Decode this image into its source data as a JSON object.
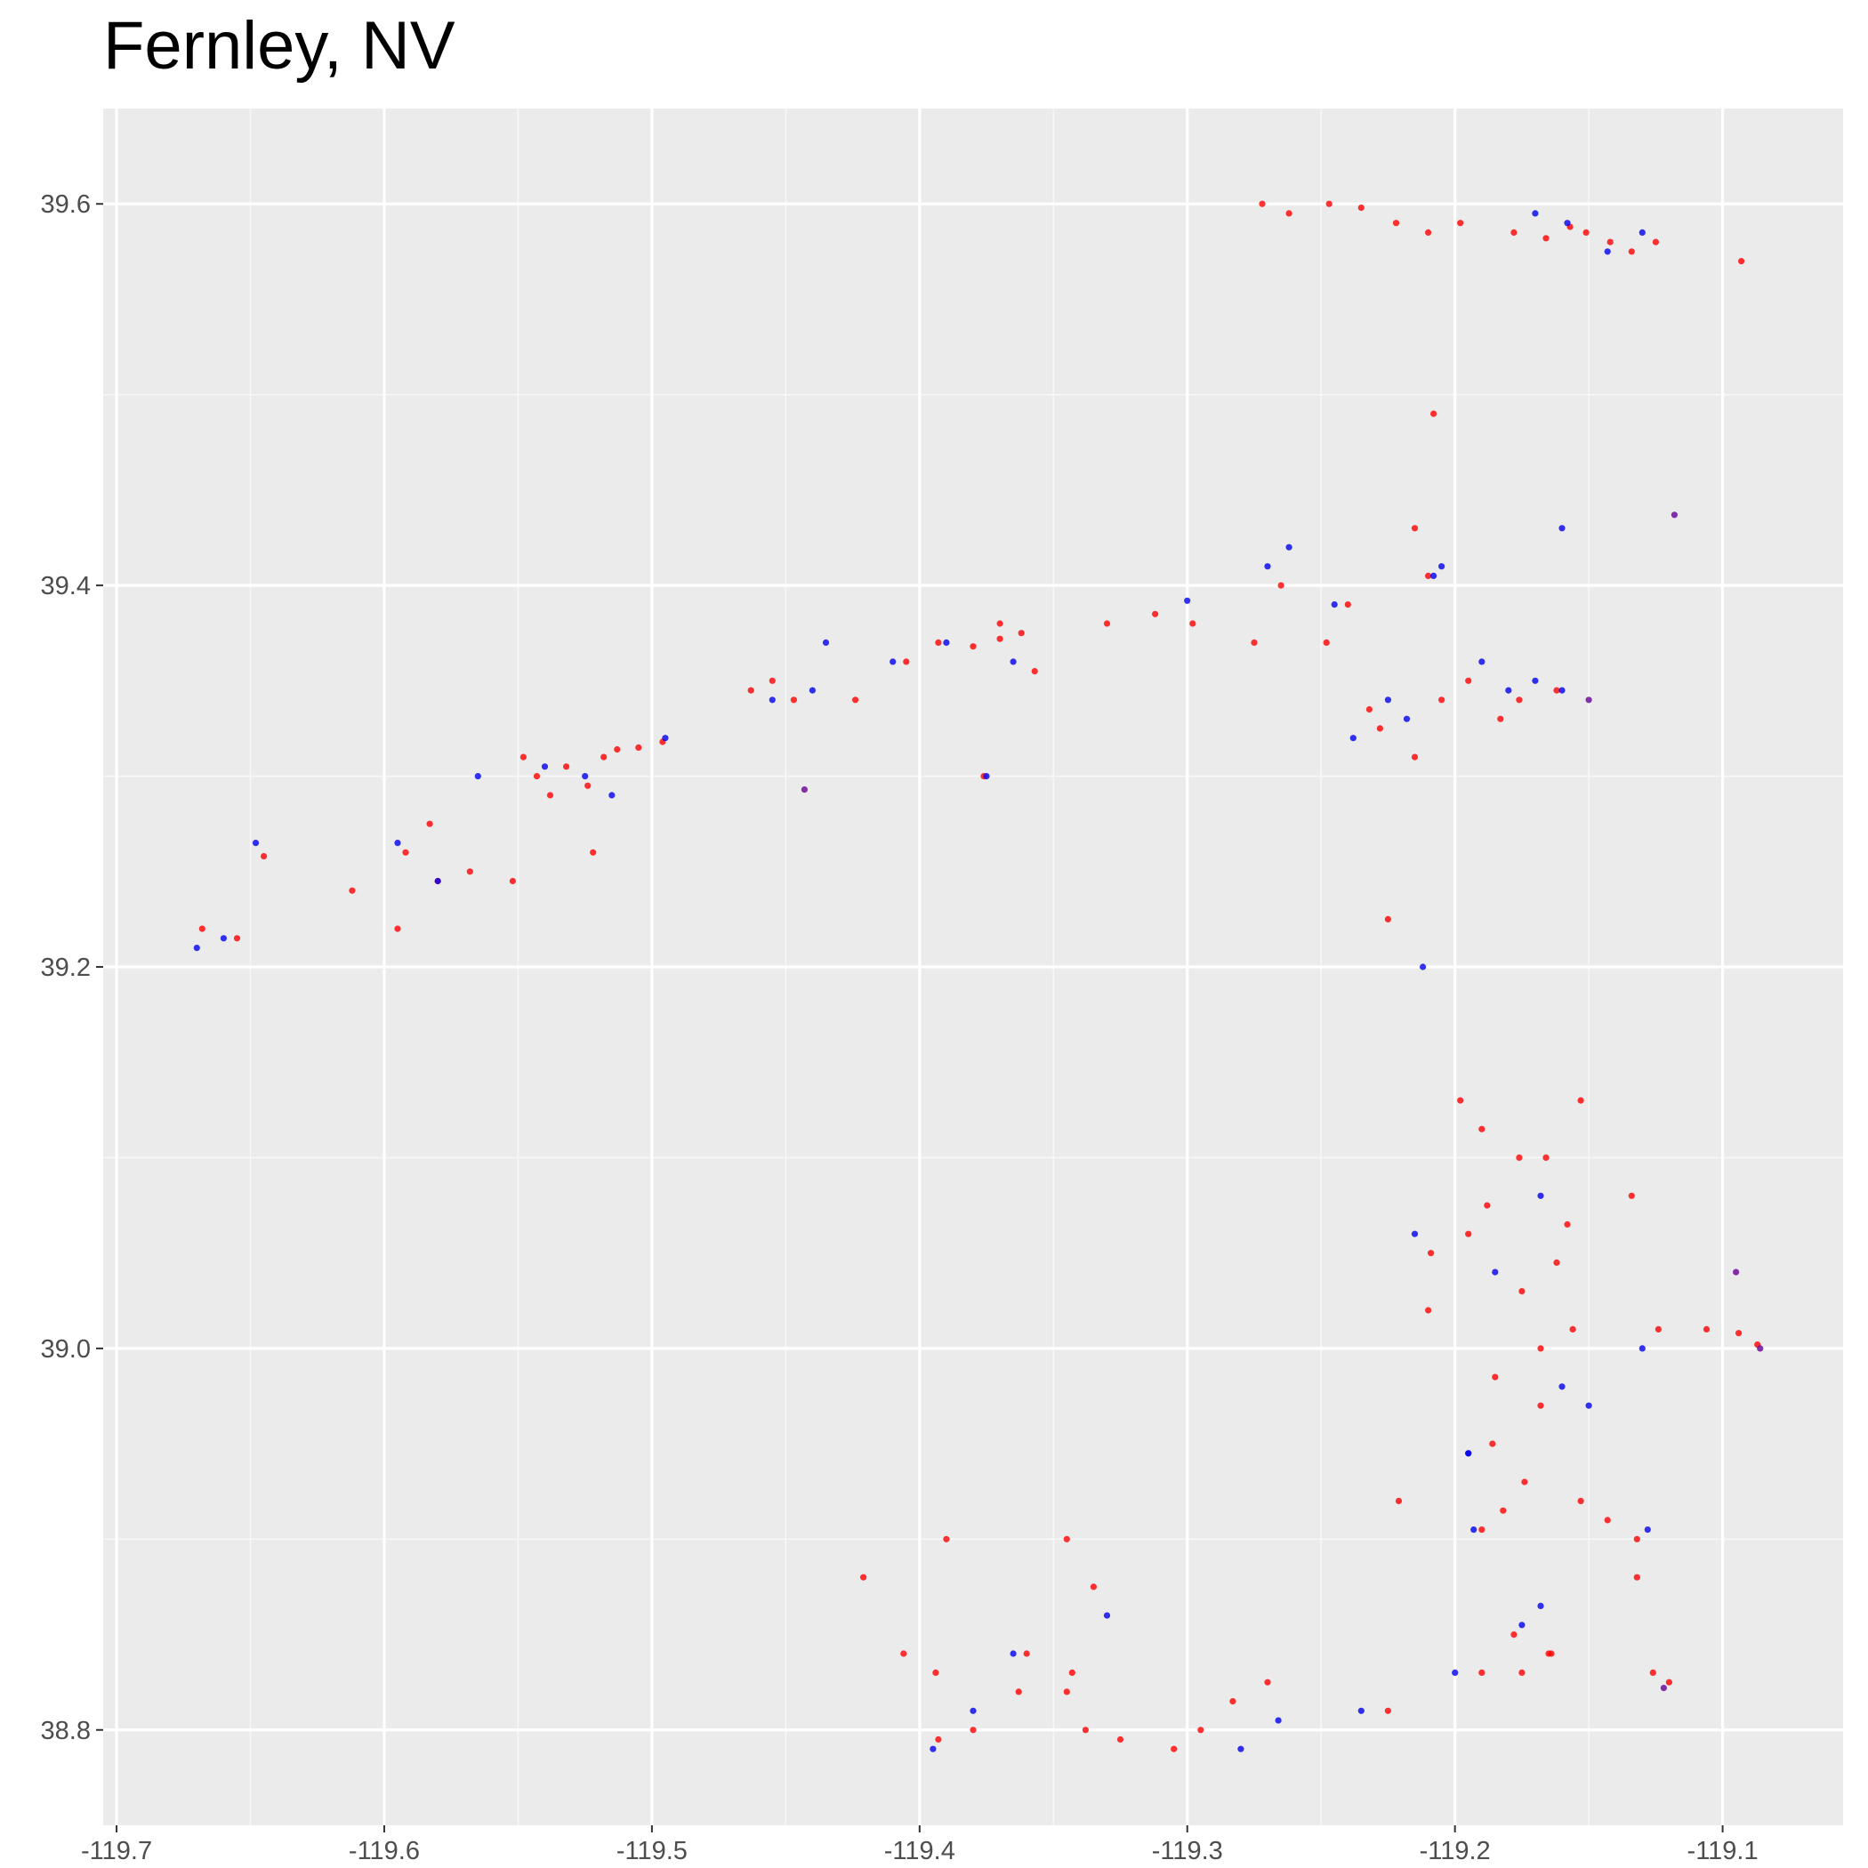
{
  "title": "Fernley, NV",
  "colors": {
    "panel_background": "#EBEBEB",
    "grid_major": "#FFFFFF",
    "grid_minor": "#F7F7F7",
    "tick_mark": "#333333",
    "tick_label": "#4D4D4D",
    "series_red": "#FF0000",
    "series_blue": "#0000EE",
    "series_purple": "#660099"
  },
  "chart_data": {
    "type": "scatter",
    "title": "Fernley, NV",
    "xlabel": "",
    "ylabel": "",
    "xlim": [
      -119.705,
      -119.055
    ],
    "ylim": [
      38.75,
      39.65
    ],
    "x_ticks": [
      -119.7,
      -119.6,
      -119.5,
      -119.4,
      -119.3,
      -119.2,
      -119.1
    ],
    "x_tick_labels": [
      "-119.7",
      "-119.6",
      "-119.5",
      "-119.4",
      "-119.3",
      "-119.2",
      "-119.1"
    ],
    "y_ticks": [
      38.8,
      39.0,
      39.2,
      39.4,
      39.6
    ],
    "y_tick_labels": [
      "38.8",
      "39.0",
      "39.2",
      "39.4",
      "39.6"
    ],
    "grid": true,
    "legend": "none",
    "series": [
      {
        "color": "#FF0000",
        "x": [
          -119.668,
          -119.655,
          -119.645,
          -119.612,
          -119.595,
          -119.592,
          -119.583,
          -119.58,
          -119.568,
          -119.552,
          -119.548,
          -119.543,
          -119.538,
          -119.532,
          -119.524,
          -119.522,
          -119.518,
          -119.513,
          -119.505,
          -119.496,
          -119.463,
          -119.455,
          -119.447,
          -119.424,
          -119.405,
          -119.393,
          -119.38,
          -119.37,
          -119.362,
          -119.357,
          -119.37,
          -119.376,
          -119.33,
          -119.312,
          -119.298,
          -119.275,
          -119.265,
          -119.248,
          -119.24,
          -119.232,
          -119.228,
          -119.215,
          -119.205,
          -119.195,
          -119.183,
          -119.176,
          -119.162,
          -119.21,
          -119.272,
          -119.262,
          -119.247,
          -119.235,
          -119.222,
          -119.21,
          -119.198,
          -119.178,
          -119.166,
          -119.157,
          -119.151,
          -119.142,
          -119.134,
          -119.125,
          -119.093,
          -119.225,
          -119.208,
          -119.215,
          -119.195,
          -119.188,
          -119.176,
          -119.166,
          -119.158,
          -119.162,
          -119.175,
          -119.168,
          -119.156,
          -119.185,
          -119.186,
          -119.209,
          -119.21,
          -119.221,
          -119.182,
          -119.19,
          -119.168,
          -119.174,
          -119.153,
          -119.143,
          -119.132,
          -119.124,
          -119.106,
          -119.094,
          -119.087,
          -119.198,
          -119.19,
          -119.153,
          -119.134,
          -119.164,
          -119.175,
          -119.132,
          -119.12,
          -119.421,
          -119.406,
          -119.394,
          -119.393,
          -119.38,
          -119.363,
          -119.36,
          -119.345,
          -119.343,
          -119.338,
          -119.325,
          -119.305,
          -119.295,
          -119.283,
          -119.27,
          -119.225,
          -119.19,
          -119.178,
          -119.165,
          -119.126,
          -119.39,
          -119.345,
          -119.335
        ],
        "y": [
          39.22,
          39.215,
          39.258,
          39.24,
          39.22,
          39.26,
          39.275,
          39.245,
          39.25,
          39.245,
          39.31,
          39.3,
          39.29,
          39.305,
          39.295,
          39.26,
          39.31,
          39.314,
          39.315,
          39.318,
          39.345,
          39.35,
          39.34,
          39.34,
          39.36,
          39.37,
          39.368,
          39.372,
          39.375,
          39.355,
          39.38,
          39.3,
          39.38,
          39.385,
          39.38,
          39.37,
          39.4,
          39.37,
          39.39,
          39.335,
          39.325,
          39.31,
          39.34,
          39.35,
          39.33,
          39.34,
          39.345,
          39.405,
          39.6,
          39.595,
          39.6,
          39.598,
          39.59,
          39.585,
          39.59,
          39.585,
          39.582,
          39.588,
          39.585,
          39.58,
          39.575,
          39.58,
          39.57,
          39.225,
          39.49,
          39.43,
          39.06,
          39.075,
          39.1,
          39.1,
          39.065,
          39.045,
          39.03,
          39.0,
          39.01,
          38.985,
          38.95,
          39.05,
          39.02,
          38.92,
          38.915,
          38.905,
          38.97,
          38.93,
          38.92,
          38.91,
          38.9,
          39.01,
          39.01,
          39.008,
          39.002,
          39.13,
          39.115,
          39.13,
          39.08,
          38.84,
          38.83,
          38.88,
          38.825,
          38.88,
          38.84,
          38.83,
          38.795,
          38.8,
          38.82,
          38.84,
          38.82,
          38.83,
          38.8,
          38.795,
          38.79,
          38.8,
          38.815,
          38.825,
          38.81,
          38.83,
          38.85,
          38.84,
          38.83,
          38.9,
          38.9,
          38.875
        ]
      },
      {
        "color": "#0000EE",
        "x": [
          -119.67,
          -119.66,
          -119.648,
          -119.595,
          -119.58,
          -119.565,
          -119.54,
          -119.525,
          -119.515,
          -119.495,
          -119.455,
          -119.44,
          -119.435,
          -119.41,
          -119.39,
          -119.365,
          -119.3,
          -119.27,
          -119.245,
          -119.218,
          -119.205,
          -119.19,
          -119.18,
          -119.17,
          -119.16,
          -119.208,
          -119.17,
          -119.158,
          -119.143,
          -119.13,
          -119.215,
          -119.185,
          -119.168,
          -119.195,
          -119.16,
          -119.15,
          -119.128,
          -119.195,
          -119.375,
          -119.235,
          -119.225,
          -119.212,
          -119.168,
          -119.13,
          -119.2,
          -119.193,
          -119.175,
          -119.16,
          -119.238,
          -119.262,
          -119.395,
          -119.38,
          -119.365,
          -119.33,
          -119.28,
          -119.266
        ],
        "y": [
          39.21,
          39.215,
          39.265,
          39.265,
          39.245,
          39.3,
          39.305,
          39.3,
          39.29,
          39.32,
          39.34,
          39.345,
          39.37,
          39.36,
          39.37,
          39.36,
          39.392,
          39.41,
          39.39,
          39.33,
          39.41,
          39.36,
          39.345,
          39.35,
          39.345,
          39.405,
          39.595,
          39.59,
          39.575,
          39.585,
          39.06,
          39.04,
          39.08,
          38.945,
          38.98,
          38.97,
          38.905,
          38.945,
          39.3,
          38.81,
          39.34,
          39.2,
          38.865,
          39.0,
          38.83,
          38.905,
          38.855,
          39.43,
          39.32,
          39.42,
          38.79,
          38.81,
          38.84,
          38.86,
          38.79,
          38.805
        ]
      },
      {
        "color": "#660099",
        "x": [
          -119.118,
          -119.443,
          -119.122,
          -119.095,
          -119.086,
          -119.15
        ],
        "y": [
          39.437,
          39.293,
          38.822,
          39.04,
          39.0,
          39.34
        ]
      }
    ]
  }
}
